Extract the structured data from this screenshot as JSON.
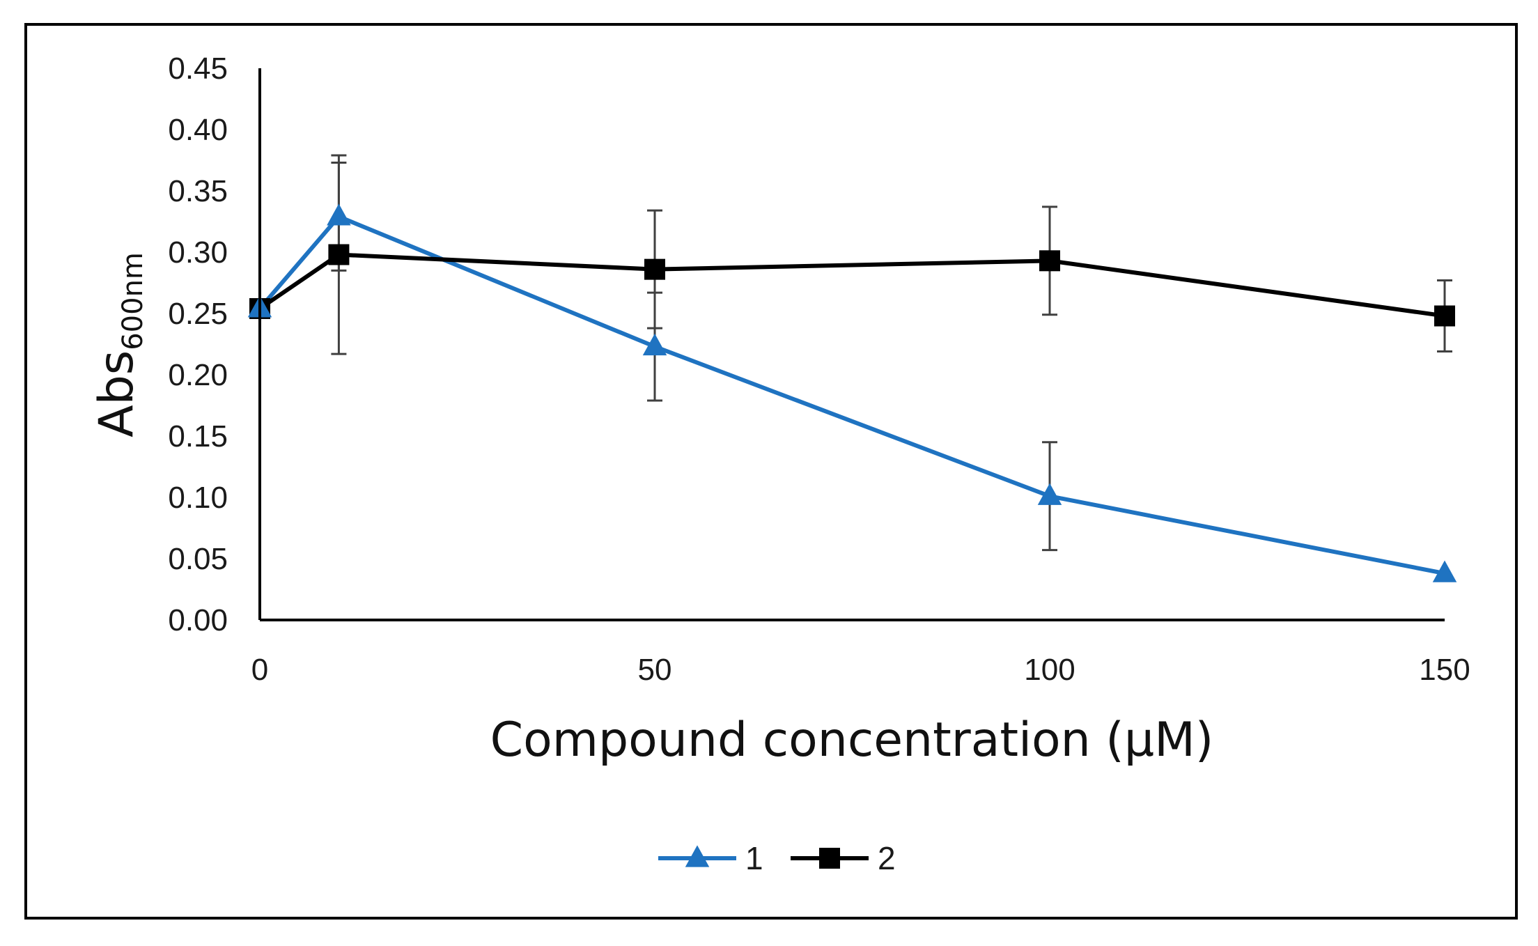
{
  "chart_data": {
    "type": "line",
    "title": "",
    "xlabel": "Compound concentration (µM)",
    "ylabel": {
      "main": "Abs",
      "sub": "600nm"
    },
    "x": [
      0,
      10,
      50,
      100,
      150
    ],
    "xlim": [
      0,
      150
    ],
    "ylim": [
      0,
      0.45
    ],
    "xticks": [
      0,
      50,
      100,
      150
    ],
    "xtick_labels": [
      "0",
      "50",
      "100",
      "150"
    ],
    "yticks": [
      0,
      0.05,
      0.1,
      0.15,
      0.2,
      0.25,
      0.3,
      0.35,
      0.4,
      0.45
    ],
    "ytick_labels": [
      "0.00",
      "0.05",
      "0.10",
      "0.15",
      "0.20",
      "0.25",
      "0.30",
      "0.35",
      "0.40",
      "0.45"
    ],
    "grid": false,
    "legend_position": "bottom-center",
    "series": [
      {
        "name": "1",
        "marker": "triangle",
        "color": "#1f73c1",
        "values": [
          0.254,
          0.329,
          0.223,
          0.101,
          0.038
        ],
        "errors": [
          0,
          0.044,
          0.044,
          0.044,
          0
        ]
      },
      {
        "name": "2",
        "marker": "square",
        "color": "#000000",
        "values": [
          0.254,
          0.298,
          0.286,
          0.293,
          0.248
        ],
        "errors": [
          0,
          0.081,
          0.048,
          0.044,
          0.029
        ]
      }
    ],
    "colors": {
      "axis": "#000000",
      "frame": "#000000",
      "errorbar": "#404040"
    }
  }
}
